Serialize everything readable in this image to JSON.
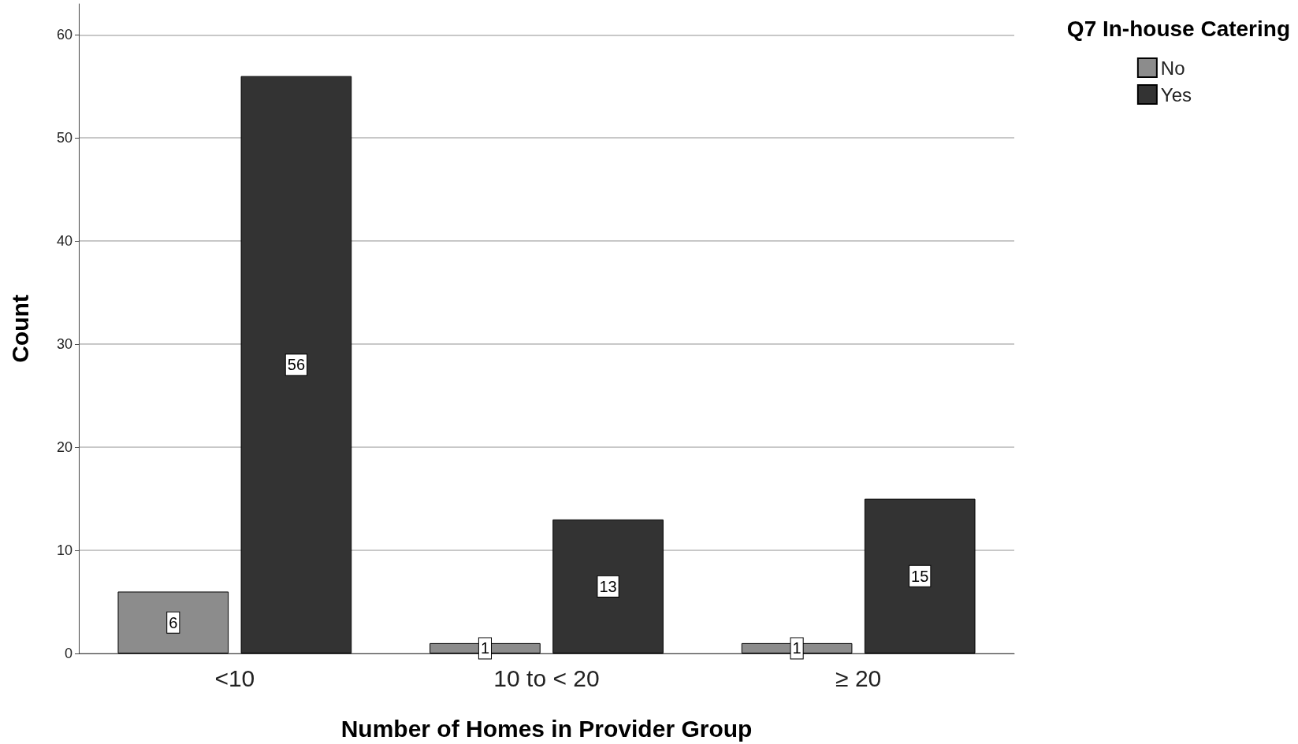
{
  "chart_data": {
    "type": "bar",
    "xlabel": "Number of Homes in Provider Group",
    "ylabel": "Count",
    "legend_title": "Q7 In-house Catering",
    "categories": [
      "<10",
      "10 to < 20",
      "≥ 20"
    ],
    "series": [
      {
        "name": "No",
        "color": "#8c8c8c",
        "values": [
          6,
          1,
          1
        ]
      },
      {
        "name": "Yes",
        "color": "#333333",
        "values": [
          56,
          13,
          15
        ]
      }
    ],
    "ylim": [
      0,
      63
    ],
    "yticks": [
      0,
      10,
      20,
      30,
      40,
      50,
      60
    ],
    "grid": "y",
    "legend": "top right",
    "data_labels": true
  }
}
